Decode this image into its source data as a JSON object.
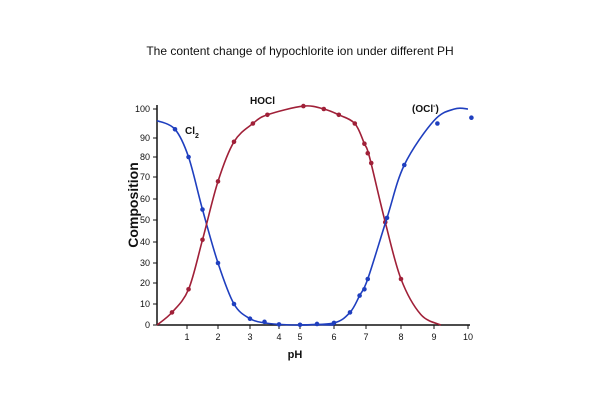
{
  "chart_data": {
    "type": "line",
    "title": "The content change of hypochlorite ion under different PH",
    "xlabel": "pH",
    "ylabel": "Composition",
    "xlim": [
      0,
      10
    ],
    "ylim": [
      0,
      100
    ],
    "xticks": [
      "1",
      "2",
      "3",
      "4",
      "5",
      "6",
      "7",
      "8",
      "9",
      "10"
    ],
    "yticks": [
      "0",
      "10",
      "20",
      "30",
      "40",
      "50",
      "60",
      "70",
      "80",
      "90",
      "100"
    ],
    "grid": false,
    "series": [
      {
        "name": "Cl2",
        "label": "Cl",
        "sub": "2",
        "color": "#1f3fbf",
        "curve": [
          [
            0,
            96
          ],
          [
            0.6,
            93
          ],
          [
            1.05,
            80
          ],
          [
            1.5,
            55
          ],
          [
            2,
            30
          ],
          [
            2.5,
            10
          ],
          [
            3,
            3
          ],
          [
            3.5,
            1
          ],
          [
            4,
            0.3
          ],
          [
            5,
            0
          ],
          [
            5.5,
            0.2
          ],
          [
            6,
            0
          ]
        ],
        "points": [
          [
            0.6,
            93
          ],
          [
            1.05,
            80
          ],
          [
            1.5,
            55
          ],
          [
            2,
            30
          ],
          [
            2.5,
            10
          ],
          [
            3,
            3
          ],
          [
            3.5,
            1.5
          ],
          [
            4,
            0.3
          ],
          [
            5,
            0.1
          ]
        ]
      },
      {
        "name": "HOCl",
        "label": "HOCl",
        "sub": "",
        "color": "#a02038",
        "curve": [
          [
            0,
            0
          ],
          [
            0.5,
            6
          ],
          [
            1.05,
            17
          ],
          [
            1.5,
            41
          ],
          [
            2,
            68
          ],
          [
            2.5,
            88
          ],
          [
            3.1,
            95
          ],
          [
            3.6,
            98
          ],
          [
            5.1,
            101
          ],
          [
            5.7,
            100
          ],
          [
            6.15,
            98
          ],
          [
            6.65,
            95
          ],
          [
            6.95,
            87
          ],
          [
            7.1,
            80
          ],
          [
            7.55,
            49
          ],
          [
            8,
            22
          ],
          [
            8.6,
            5
          ],
          [
            9.2,
            0
          ]
        ],
        "points": [
          [
            0.5,
            6
          ],
          [
            1.05,
            17
          ],
          [
            1.5,
            41
          ],
          [
            2,
            68
          ],
          [
            2.5,
            88
          ],
          [
            3.1,
            95
          ],
          [
            3.6,
            98
          ],
          [
            5.1,
            101
          ],
          [
            5.7,
            100
          ],
          [
            6.15,
            98
          ],
          [
            6.65,
            95
          ],
          [
            6.95,
            87
          ],
          [
            7.05,
            82
          ],
          [
            7.15,
            77
          ],
          [
            7.55,
            49
          ],
          [
            8,
            22
          ]
        ]
      },
      {
        "name": "OCl-",
        "label": "(OCl",
        "sup": "-",
        "tail": ")",
        "color": "#1f3fbf",
        "curve": [
          [
            5,
            0
          ],
          [
            6,
            1
          ],
          [
            6.5,
            6
          ],
          [
            6.8,
            14
          ],
          [
            7.05,
            22
          ],
          [
            7.6,
            51
          ],
          [
            8.1,
            76
          ],
          [
            9,
            96
          ],
          [
            9.6,
            100
          ],
          [
            10,
            100
          ]
        ],
        "points": [
          [
            5.5,
            0.5
          ],
          [
            6,
            1
          ],
          [
            6.5,
            6
          ],
          [
            6.8,
            14
          ],
          [
            6.95,
            17
          ],
          [
            7.05,
            22
          ],
          [
            7.6,
            51
          ],
          [
            8.1,
            76
          ],
          [
            9.1,
            95
          ],
          [
            10.1,
            97
          ]
        ]
      }
    ]
  }
}
